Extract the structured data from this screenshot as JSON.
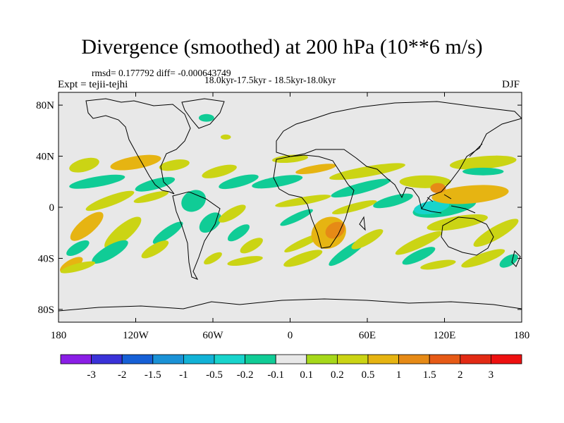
{
  "header": {
    "title": "Divergence (smoothed) at 200 hPa (10**6 m/s)",
    "stats": "rmsd= 0.177792 diff= -0.000643749",
    "period": "18.0kyr-17.5kyr - 18.5kyr-18.0kyr",
    "experiment": "Expt = tejii-tejhi",
    "season": "DJF"
  },
  "chart_data": {
    "type": "heatmap",
    "title": "Divergence (smoothed) at 200 hPa (10**6 m/s)",
    "xlabel": "",
    "ylabel": "",
    "xlim": [
      -180,
      180
    ],
    "ylim": [
      -90,
      90
    ],
    "x_ticks": [
      {
        "value": -180,
        "label": "180"
      },
      {
        "value": -120,
        "label": "120W"
      },
      {
        "value": -60,
        "label": "60W"
      },
      {
        "value": 0,
        "label": "0"
      },
      {
        "value": 60,
        "label": "60E"
      },
      {
        "value": 120,
        "label": "120E"
      },
      {
        "value": 180,
        "label": "180"
      }
    ],
    "y_ticks": [
      {
        "value": 80,
        "label": "80N"
      },
      {
        "value": 40,
        "label": "40N"
      },
      {
        "value": 0,
        "label": "0"
      },
      {
        "value": -40,
        "label": "40S"
      },
      {
        "value": -80,
        "label": "80S"
      }
    ],
    "colorbar": {
      "labels": [
        "-3",
        "-2",
        "-1.5",
        "-1",
        "-0.5",
        "-0.2",
        "-0.1",
        "0.1",
        "0.2",
        "0.5",
        "1",
        "1.5",
        "2",
        "3"
      ],
      "colors": [
        "#8a1ee6",
        "#3a32d8",
        "#1660d6",
        "#1a92d6",
        "#12b2d6",
        "#18d4cc",
        "#10cc96",
        "#e8e8e8",
        "#a6d81a",
        "#cbd414",
        "#e6b412",
        "#e68a16",
        "#e65a16",
        "#e22a14",
        "#ee1010"
      ]
    },
    "regions": [
      {
        "lon": -160,
        "lat": 33,
        "rx": 12,
        "ry": 5,
        "rot": -15,
        "value": 0.2
      },
      {
        "lon": -120,
        "lat": 35,
        "rx": 20,
        "ry": 5,
        "rot": -10,
        "value": 0.5
      },
      {
        "lon": -90,
        "lat": 33,
        "rx": 12,
        "ry": 4,
        "rot": -10,
        "value": 0.2
      },
      {
        "lon": -150,
        "lat": 20,
        "rx": 22,
        "ry": 4,
        "rot": -10,
        "value": -0.2
      },
      {
        "lon": -105,
        "lat": 18,
        "rx": 16,
        "ry": 4,
        "rot": -15,
        "value": -0.2
      },
      {
        "lon": -140,
        "lat": 5,
        "rx": 20,
        "ry": 4,
        "rot": -20,
        "value": 0.2
      },
      {
        "lon": -108,
        "lat": 8,
        "rx": 14,
        "ry": 3,
        "rot": -15,
        "value": 0.2
      },
      {
        "lon": -158,
        "lat": -15,
        "rx": 16,
        "ry": 6,
        "rot": -40,
        "value": 0.5
      },
      {
        "lon": -130,
        "lat": -20,
        "rx": 18,
        "ry": 6,
        "rot": -40,
        "value": 0.2
      },
      {
        "lon": -95,
        "lat": -20,
        "rx": 14,
        "ry": 4,
        "rot": -35,
        "value": -0.2
      },
      {
        "lon": -165,
        "lat": -32,
        "rx": 10,
        "ry": 4,
        "rot": -30,
        "value": -0.2
      },
      {
        "lon": -140,
        "lat": -35,
        "rx": 16,
        "ry": 5,
        "rot": -30,
        "value": -0.2
      },
      {
        "lon": -105,
        "lat": -33,
        "rx": 12,
        "ry": 4,
        "rot": -30,
        "value": 0.2
      },
      {
        "lon": -170,
        "lat": -45,
        "rx": 10,
        "ry": 4,
        "rot": -30,
        "value": 0.5
      },
      {
        "lon": -165,
        "lat": -47,
        "rx": 14,
        "ry": 3,
        "rot": -15,
        "value": 0.2
      },
      {
        "lon": -75,
        "lat": 5,
        "rx": 10,
        "ry": 8,
        "rot": -30,
        "value": -0.2
      },
      {
        "lon": -62,
        "lat": -12,
        "rx": 10,
        "ry": 6,
        "rot": -40,
        "value": -0.2
      },
      {
        "lon": -55,
        "lat": 28,
        "rx": 14,
        "ry": 4,
        "rot": -15,
        "value": 0.2
      },
      {
        "lon": -40,
        "lat": 20,
        "rx": 16,
        "ry": 4,
        "rot": -15,
        "value": -0.2
      },
      {
        "lon": -45,
        "lat": -5,
        "rx": 12,
        "ry": 4,
        "rot": -30,
        "value": 0.2
      },
      {
        "lon": -40,
        "lat": -20,
        "rx": 10,
        "ry": 4,
        "rot": -35,
        "value": -0.2
      },
      {
        "lon": -30,
        "lat": -30,
        "rx": 10,
        "ry": 4,
        "rot": -30,
        "value": 0.2
      },
      {
        "lon": -60,
        "lat": -40,
        "rx": 8,
        "ry": 3,
        "rot": -30,
        "value": 0.2
      },
      {
        "lon": -35,
        "lat": -42,
        "rx": 14,
        "ry": 3,
        "rot": -10,
        "value": 0.2
      },
      {
        "lon": -65,
        "lat": 70,
        "rx": 6,
        "ry": 3,
        "rot": 0,
        "value": -0.2
      },
      {
        "lon": -50,
        "lat": 55,
        "rx": 4,
        "ry": 2,
        "rot": 0,
        "value": 0.2
      },
      {
        "lon": 0,
        "lat": 38,
        "rx": 14,
        "ry": 3,
        "rot": -5,
        "value": 0.2
      },
      {
        "lon": 20,
        "lat": 30,
        "rx": 16,
        "ry": 3,
        "rot": -10,
        "value": 0.5
      },
      {
        "lon": -10,
        "lat": 20,
        "rx": 20,
        "ry": 4,
        "rot": -10,
        "value": -0.2
      },
      {
        "lon": 10,
        "lat": 5,
        "rx": 22,
        "ry": 3,
        "rot": -10,
        "value": 0.2
      },
      {
        "lon": 5,
        "lat": -8,
        "rx": 14,
        "ry": 3,
        "rot": -25,
        "value": -0.2
      },
      {
        "lon": 10,
        "lat": -28,
        "rx": 16,
        "ry": 3,
        "rot": -25,
        "value": 0.2
      },
      {
        "lon": 30,
        "lat": -20,
        "rx": 14,
        "ry": 12,
        "rot": -30,
        "value": 0.5
      },
      {
        "lon": 35,
        "lat": -18,
        "rx": 8,
        "ry": 6,
        "rot": -30,
        "value": 1
      },
      {
        "lon": 45,
        "lat": -35,
        "rx": 18,
        "ry": 4,
        "rot": -35,
        "value": -0.2
      },
      {
        "lon": 60,
        "lat": -25,
        "rx": 14,
        "ry": 4,
        "rot": -30,
        "value": 0.2
      },
      {
        "lon": 10,
        "lat": -40,
        "rx": 16,
        "ry": 4,
        "rot": -20,
        "value": 0.2
      },
      {
        "lon": 60,
        "lat": 28,
        "rx": 30,
        "ry": 4,
        "rot": -10,
        "value": 0.2
      },
      {
        "lon": 55,
        "lat": 15,
        "rx": 24,
        "ry": 4,
        "rot": -15,
        "value": -0.2
      },
      {
        "lon": 50,
        "lat": 0,
        "rx": 18,
        "ry": 3,
        "rot": -15,
        "value": 0.2
      },
      {
        "lon": 80,
        "lat": 5,
        "rx": 16,
        "ry": 4,
        "rot": -15,
        "value": -0.2
      },
      {
        "lon": 105,
        "lat": 20,
        "rx": 20,
        "ry": 5,
        "rot": 0,
        "value": 0.2
      },
      {
        "lon": 120,
        "lat": 0,
        "rx": 25,
        "ry": 7,
        "rot": -10,
        "value": -0.2
      },
      {
        "lon": 110,
        "lat": 0,
        "rx": 14,
        "ry": 5,
        "rot": -10,
        "value": -0.5
      },
      {
        "lon": 130,
        "lat": -12,
        "rx": 24,
        "ry": 5,
        "rot": -10,
        "value": 0.2
      },
      {
        "lon": 140,
        "lat": 10,
        "rx": 30,
        "ry": 7,
        "rot": -5,
        "value": 0.5
      },
      {
        "lon": 115,
        "lat": 15,
        "rx": 6,
        "ry": 4,
        "rot": 0,
        "value": 1
      },
      {
        "lon": 150,
        "lat": 35,
        "rx": 26,
        "ry": 5,
        "rot": -5,
        "value": 0.2
      },
      {
        "lon": 150,
        "lat": 28,
        "rx": 16,
        "ry": 3,
        "rot": 0,
        "value": -0.2
      },
      {
        "lon": 160,
        "lat": -20,
        "rx": 20,
        "ry": 5,
        "rot": -30,
        "value": 0.2
      },
      {
        "lon": 100,
        "lat": -28,
        "rx": 20,
        "ry": 4,
        "rot": -25,
        "value": 0.2
      },
      {
        "lon": 100,
        "lat": -38,
        "rx": 14,
        "ry": 4,
        "rot": -25,
        "value": -0.2
      },
      {
        "lon": 150,
        "lat": -40,
        "rx": 18,
        "ry": 4,
        "rot": -20,
        "value": 0.2
      },
      {
        "lon": 170,
        "lat": -42,
        "rx": 8,
        "ry": 4,
        "rot": -30,
        "value": -0.2
      },
      {
        "lon": 115,
        "lat": -45,
        "rx": 14,
        "ry": 3,
        "rot": -10,
        "value": 0.2
      }
    ]
  }
}
